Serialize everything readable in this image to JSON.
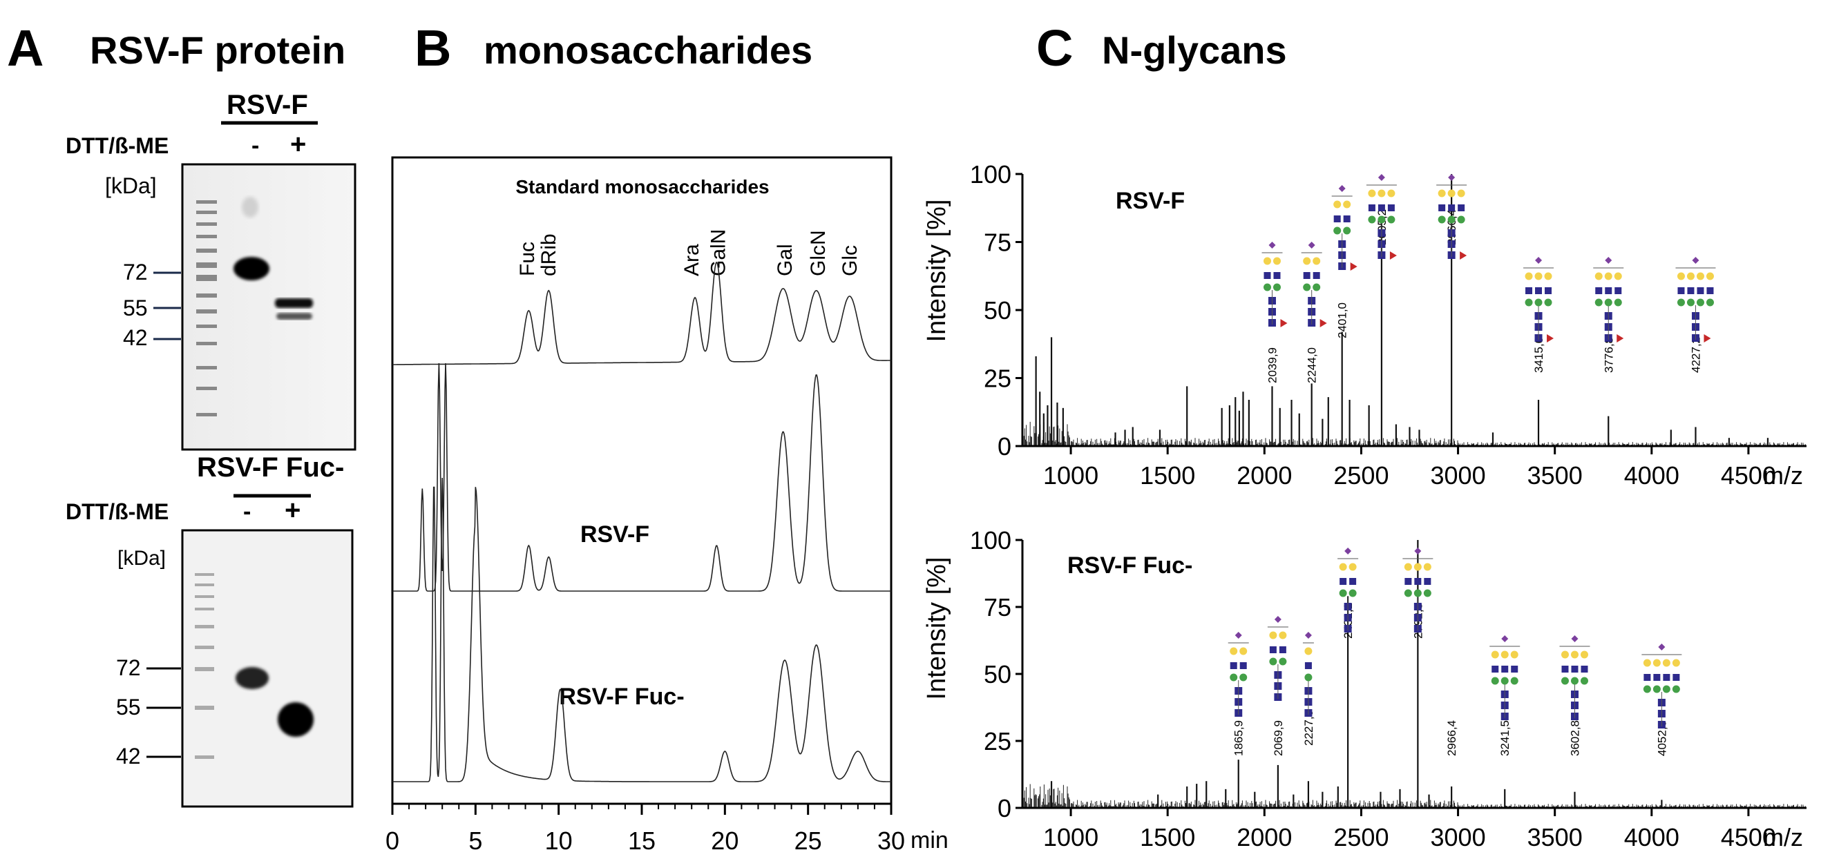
{
  "panelA": {
    "letter": "A",
    "title": "RSV-F protein",
    "gel1": {
      "header": "RSV-F",
      "treatment_label": "DTT/ß-ME",
      "lane_minus": "-",
      "lane_plus": "+",
      "unit": "[kDa]",
      "markers": [
        "72",
        "55",
        "42"
      ]
    },
    "gel2": {
      "header": "RSV-F Fuc-",
      "treatment_label": "DTT/ß-ME",
      "lane_minus": "-",
      "lane_plus": "+",
      "unit": "[kDa]",
      "markers": [
        "72",
        "55",
        "42"
      ]
    }
  },
  "panelB": {
    "letter": "B",
    "title": "monosaccharides",
    "trace_labels": [
      "Standard monosaccharides",
      "RSV-F",
      "RSV-F Fuc-"
    ],
    "peak_labels": [
      "Fuc",
      "dRib",
      "Ara",
      "GalN",
      "Gal",
      "GlcN",
      "Glc"
    ],
    "x_ticks": [
      "0",
      "5",
      "10",
      "15",
      "20",
      "25",
      "30"
    ],
    "x_unit": "min"
  },
  "panelC": {
    "letter": "C",
    "title": "N-glycans",
    "y_label": "Intensity [%]",
    "y_ticks": [
      "100",
      "75",
      "50",
      "25",
      "0"
    ],
    "x_ticks": [
      "1000",
      "1500",
      "2000",
      "2500",
      "3000",
      "3500",
      "4000",
      "4500"
    ],
    "x_unit": "m/z",
    "spectrum1": {
      "label": "RSV-F",
      "peak_labels": [
        "2039,9",
        "2244,0",
        "2401,0",
        "2605,2",
        "2966,4",
        "3415,6",
        "3776,8",
        "4227,2"
      ]
    },
    "spectrum2": {
      "label": "RSV-F Fuc-",
      "peak_labels": [
        "1865,9",
        "2069,9",
        "2227,0",
        "2431,1",
        "2792,3",
        "2966,4",
        "3241,5",
        "3602,8",
        "4052,0"
      ]
    }
  },
  "chart_data": [
    {
      "type": "line",
      "title": "monosaccharides",
      "xlabel": "min",
      "ylabel": "",
      "xlim": [
        0,
        30
      ],
      "series": [
        {
          "name": "Standard monosaccharides",
          "peaks": [
            {
              "x": 8.2,
              "h": 0.45
            },
            {
              "x": 9.4,
              "h": 0.62
            },
            {
              "x": 18.2,
              "h": 0.55
            },
            {
              "x": 19.5,
              "h": 0.85
            },
            {
              "x": 23.5,
              "h": 0.62
            },
            {
              "x": 25.5,
              "h": 0.6
            },
            {
              "x": 27.5,
              "h": 0.55
            }
          ]
        },
        {
          "name": "RSV-F",
          "peaks": [
            {
              "x": 1.8,
              "h": 0.45
            },
            {
              "x": 2.8,
              "h": 1.0
            },
            {
              "x": 3.2,
              "h": 1.0
            },
            {
              "x": 8.2,
              "h": 0.2
            },
            {
              "x": 9.4,
              "h": 0.15
            },
            {
              "x": 19.5,
              "h": 0.2
            },
            {
              "x": 23.5,
              "h": 0.7
            },
            {
              "x": 25.5,
              "h": 0.95
            }
          ]
        },
        {
          "name": "RSV-F Fuc-",
          "peaks": [
            {
              "x": 2.5,
              "h": 1.0
            },
            {
              "x": 3.0,
              "h": 1.0
            },
            {
              "x": 5.0,
              "h": 0.85
            },
            {
              "x": 10.1,
              "h": 0.3
            },
            {
              "x": 20.0,
              "h": 0.1
            },
            {
              "x": 23.6,
              "h": 0.4
            },
            {
              "x": 25.5,
              "h": 0.45
            },
            {
              "x": 28.0,
              "h": 0.1
            }
          ]
        }
      ]
    },
    {
      "type": "bar",
      "title": "RSV-F",
      "xlabel": "m/z",
      "ylabel": "Intensity [%]",
      "xlim": [
        750,
        4800
      ],
      "ylim": [
        0,
        100
      ],
      "x": [
        820,
        840,
        860,
        880,
        900,
        930,
        960,
        1230,
        1280,
        1320,
        1460,
        1600,
        1780,
        1820,
        1850,
        1870,
        1890,
        1920,
        2039.9,
        2080,
        2140,
        2180,
        2244.0,
        2300,
        2330,
        2401.0,
        2440,
        2540,
        2605.2,
        2680,
        2750,
        2800,
        2966.4,
        3180,
        3415.6,
        3776.8,
        4100,
        4227.2,
        4400,
        4600
      ],
      "y": [
        33,
        20,
        12,
        15,
        40,
        16,
        14,
        5,
        6,
        7,
        6,
        22,
        14,
        15,
        18,
        13,
        20,
        17,
        22,
        14,
        17,
        12,
        23,
        10,
        18,
        42,
        17,
        15,
        83,
        8,
        7,
        6,
        100,
        5,
        17,
        11,
        6,
        7,
        3,
        3
      ]
    },
    {
      "type": "bar",
      "title": "RSV-F Fuc-",
      "xlabel": "m/z",
      "ylabel": "Intensity [%]",
      "xlim": [
        750,
        4800
      ],
      "ylim": [
        0,
        100
      ],
      "x": [
        900,
        1450,
        1600,
        1650,
        1700,
        1800,
        1865.9,
        1950,
        2069.9,
        2150,
        2227.0,
        2300,
        2380,
        2431.1,
        2600,
        2700,
        2792.3,
        2850,
        2966.4,
        3241.5,
        3602.8,
        4052.0
      ],
      "y": [
        10,
        5,
        8,
        9,
        10,
        7,
        18,
        6,
        16,
        5,
        10,
        6,
        8,
        79,
        6,
        7,
        100,
        5,
        8,
        7,
        6,
        3
      ]
    }
  ]
}
